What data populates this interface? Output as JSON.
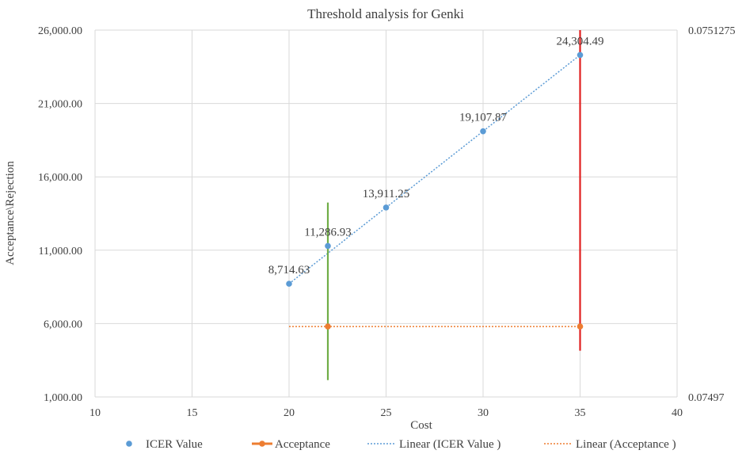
{
  "chart_data": {
    "type": "scatter",
    "title": "Threshold analysis  for Genki",
    "xlabel": "Cost",
    "ylabel": "Acceptance\\Rejection",
    "xlim": [
      10,
      40
    ],
    "ylim": [
      1000,
      26000
    ],
    "y2lim": [
      0.07497,
      0.0751275
    ],
    "x_ticks": [
      "10",
      "15",
      "20",
      "25",
      "30",
      "35",
      "40"
    ],
    "y_ticks": [
      "1,000.00",
      "6,000.00",
      "11,000.00",
      "16,000.00",
      "21,000.00",
      "26,000.00"
    ],
    "y2_ticks": [
      "0.07497",
      "0.0751275"
    ],
    "grid": true,
    "legend_position": "bottom",
    "series": [
      {
        "name": "ICER Value",
        "kind": "scatter",
        "color": "#5B9BD5",
        "x": [
          20,
          22,
          25,
          30,
          35
        ],
        "y": [
          8714.63,
          11286.93,
          13911.25,
          19107.87,
          24304.49
        ],
        "labels": [
          "8,714.63",
          "11,286.93",
          "13,911.25",
          "19,107.87",
          "24,304.49"
        ]
      },
      {
        "name": "Acceptance",
        "kind": "scatter",
        "color": "#ED7D31",
        "x": [
          22,
          35
        ],
        "y": [
          5800,
          5800
        ]
      },
      {
        "name": "Linear (ICER Value )",
        "kind": "trendline",
        "color": "#5B9BD5",
        "x": [
          20,
          35
        ],
        "y": [
          8714.63,
          24304.49
        ]
      },
      {
        "name": "Linear (Acceptance )",
        "kind": "trendline",
        "color": "#ED7D31",
        "x": [
          20,
          35
        ],
        "y": [
          5800,
          5800
        ]
      }
    ],
    "error_bars": [
      {
        "x": 22,
        "y_low": 2150,
        "y_high": 14250,
        "color": "#70AD47"
      },
      {
        "x": 35,
        "y_low": 4150,
        "y_high": 26000,
        "color": "#E02020"
      }
    ]
  }
}
